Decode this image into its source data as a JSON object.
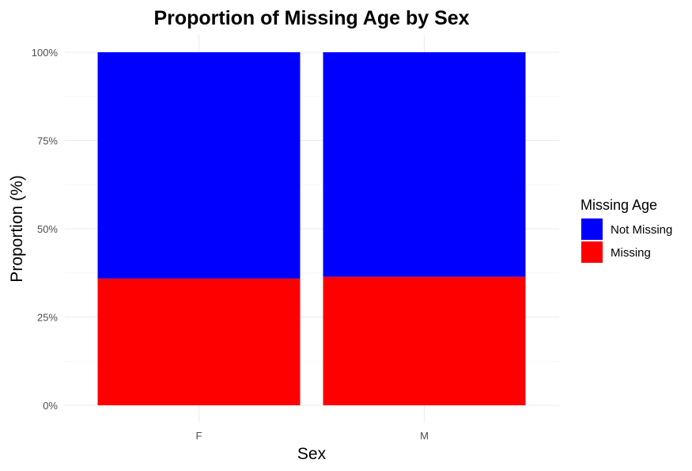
{
  "chart_data": {
    "type": "bar",
    "stacked": true,
    "title": "Proportion of Missing Age by Sex",
    "xlabel": "Sex",
    "ylabel": "Proportion (%)",
    "categories": [
      "F",
      "M"
    ],
    "ylim": [
      0,
      100
    ],
    "yticks": [
      0,
      25,
      50,
      75,
      100
    ],
    "ytick_labels": [
      "0%",
      "25%",
      "50%",
      "75%",
      "100%"
    ],
    "grid": true,
    "legend": {
      "title": "Missing Age",
      "placement": "right"
    },
    "series": [
      {
        "name": "Missing",
        "color": "#ff0000",
        "values": [
          35.9,
          36.4
        ]
      },
      {
        "name": "Not Missing",
        "color": "#0000ff",
        "values": [
          64.1,
          63.6
        ]
      }
    ],
    "legend_order": [
      "Not Missing",
      "Missing"
    ]
  }
}
